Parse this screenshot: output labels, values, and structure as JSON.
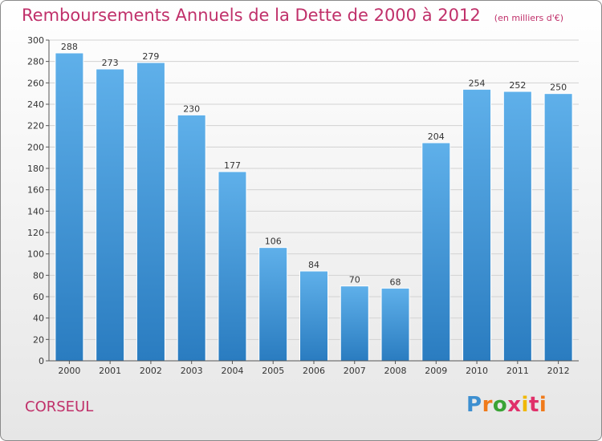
{
  "title": "Remboursements Annuels de la Dette de 2000 à 2012",
  "subtitle": "(en milliers d'€)",
  "commune": "CORSEUL",
  "logo": {
    "letters": [
      "P",
      "r",
      "o",
      "x",
      "i",
      "t",
      "i"
    ],
    "colors": [
      "#3d8fd0",
      "#f07a1a",
      "#3aa335",
      "#e0306a",
      "#f0b800",
      "#e0306a",
      "#f07a1a"
    ]
  },
  "colors": {
    "bar": "#3d92d6",
    "bar_light": "#5fb0ea",
    "bar_dark": "#2a7cc0",
    "title": "#c0306a"
  },
  "chart_data": {
    "type": "bar",
    "categories": [
      "2000",
      "2001",
      "2002",
      "2003",
      "2004",
      "2005",
      "2006",
      "2007",
      "2008",
      "2009",
      "2010",
      "2011",
      "2012"
    ],
    "values": [
      288,
      273,
      279,
      230,
      177,
      106,
      84,
      70,
      68,
      204,
      254,
      252,
      250
    ],
    "ylim": [
      0,
      300
    ],
    "yticks": [
      0,
      20,
      40,
      60,
      80,
      100,
      120,
      140,
      160,
      180,
      200,
      220,
      240,
      260,
      280,
      300
    ],
    "grid": true,
    "data_labels": true
  }
}
